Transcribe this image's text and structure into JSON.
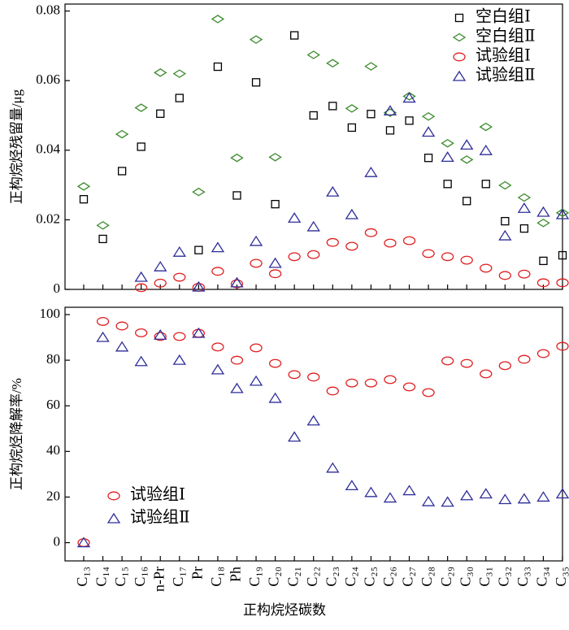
{
  "chart_data": [
    {
      "type": "scatter",
      "y_label": "正构烷烃残留量/μg",
      "ylim": [
        0,
        0.082
      ],
      "yticks": [
        0,
        0.02,
        0.04,
        0.06,
        0.08
      ],
      "legend": "upper right",
      "series": [
        {
          "name": "空白组Ⅰ",
          "color": "#000000",
          "marker": "square",
          "values": [
            0.0259,
            0.0145,
            0.034,
            0.041,
            0.0505,
            0.055,
            0.0113,
            0.064,
            0.027,
            0.0595,
            0.0245,
            0.073,
            0.05,
            0.0527,
            0.0465,
            0.0504,
            0.0457,
            0.0485,
            0.0378,
            0.0303,
            0.0254,
            0.0303,
            0.0196,
            0.0175,
            0.0082,
            0.0098
          ]
        },
        {
          "name": "空白组Ⅱ",
          "color": "#3a8a2a",
          "marker": "diamond",
          "values": [
            0.0296,
            0.0184,
            0.0446,
            0.0522,
            0.0623,
            0.062,
            0.028,
            0.0777,
            0.0378,
            0.0718,
            0.038,
            null,
            0.0674,
            0.065,
            0.052,
            0.0641,
            0.0508,
            0.0555,
            0.0497,
            0.042,
            0.0373,
            0.0467,
            0.0299,
            0.0264,
            0.0191,
            0.022
          ]
        },
        {
          "name": "试验组Ⅰ",
          "color": "#e02020",
          "marker": "circle",
          "values": [
            null,
            null,
            null,
            0.0005,
            0.0018,
            0.0035,
            0.0006,
            0.0052,
            0.0016,
            0.0075,
            0.0045,
            0.0094,
            0.01,
            0.0135,
            0.0124,
            0.0163,
            0.0133,
            0.014,
            0.0103,
            0.0094,
            0.0084,
            0.0061,
            0.004,
            0.0044,
            0.0019,
            0.0019
          ]
        },
        {
          "name": "试验组Ⅱ",
          "color": "#2e2e9a",
          "marker": "triangle",
          "values": [
            null,
            null,
            null,
            0.0035,
            0.0065,
            0.0107,
            0.0007,
            0.012,
            0.0019,
            0.0138,
            0.0075,
            0.0205,
            0.018,
            0.028,
            0.0215,
            0.0336,
            0.0513,
            0.055,
            0.0452,
            0.038,
            0.0415,
            0.0399,
            0.0154,
            0.0233,
            0.0222,
            0.0215
          ]
        }
      ]
    },
    {
      "type": "scatter",
      "y_label": "正构烷烃降解率/%",
      "x_label": "正构烷烃碳数",
      "ylim": [
        -8,
        103.2
      ],
      "yticks": [
        0,
        20,
        40,
        60,
        80,
        100
      ],
      "legend": "lower left",
      "categories": [
        "C₁₃",
        "C₁₄",
        "C₁₅",
        "C₁₆",
        "n-Pr",
        "C₁₇",
        "Pr",
        "C₁₈",
        "Ph",
        "C₁₉",
        "C₂₀",
        "C₂₁",
        "C₂₂",
        "C₂₃",
        "C₂₄",
        "C₂₅",
        "C₂₆",
        "C₂₇",
        "C₂₈",
        "C₂₉",
        "C₃₀",
        "C₃₁",
        "C₃₂",
        "C₃₃",
        "C₃₄",
        "C₃₅"
      ],
      "series": [
        {
          "name": "试验组Ⅰ",
          "color": "#e02020",
          "marker": "circle",
          "values": [
            0,
            97,
            95,
            92,
            90.4,
            90.4,
            91.8,
            85.8,
            80,
            85.4,
            78.6,
            73.7,
            72.6,
            66.5,
            70,
            70,
            71.5,
            68.3,
            65.8,
            79.7,
            78.6,
            74,
            77.6,
            80.4,
            82.9,
            86.1
          ]
        },
        {
          "name": "试验组Ⅱ",
          "color": "#2e2e9a",
          "marker": "triangle",
          "values": [
            0,
            90,
            85.8,
            79.4,
            91,
            80,
            91.8,
            75.8,
            67.6,
            70.8,
            63.3,
            46.3,
            53.4,
            32.7,
            25,
            22,
            19.6,
            22.8,
            18,
            17.8,
            20.6,
            21.4,
            18.9,
            19.2,
            20,
            21.4
          ]
        }
      ]
    }
  ]
}
